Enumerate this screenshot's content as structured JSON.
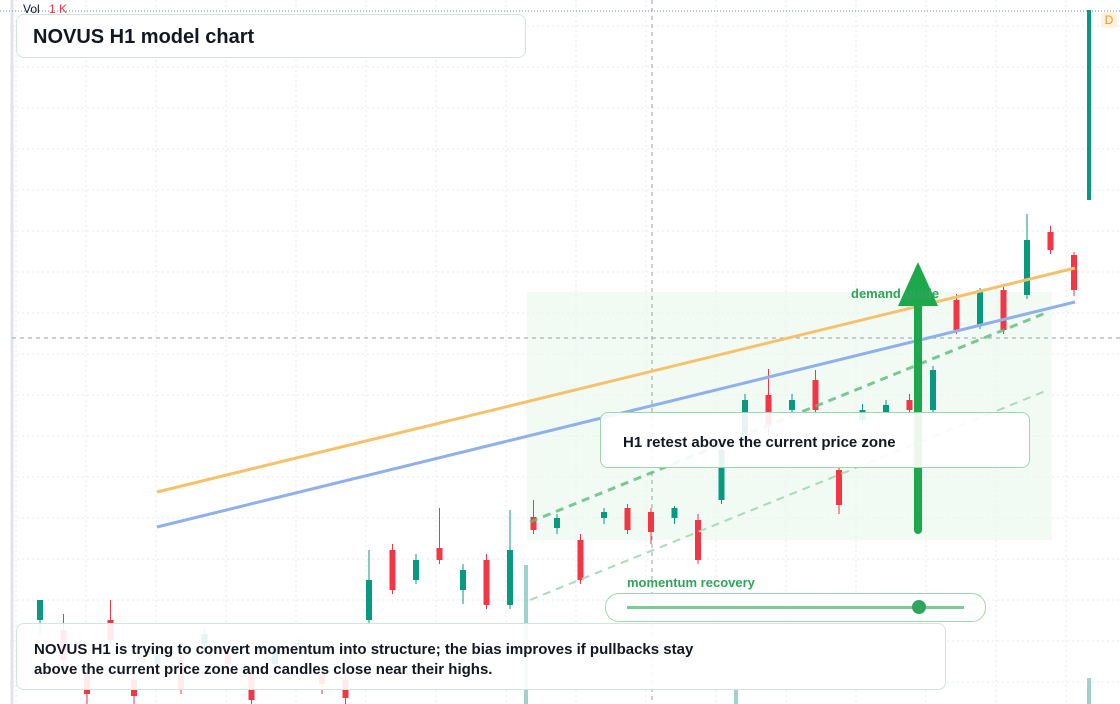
{
  "chart_data": {
    "type": "candlestick",
    "title": "NOVUS H1 model chart",
    "volume_label": "Vol",
    "volume_value": "1 K",
    "interval_badge": "D",
    "annotations": {
      "zone": "demand guide",
      "retest": "H1 retest above the current price zone",
      "momentum": "momentum recovery"
    },
    "note": [
      "NOVUS H1 is trying to convert momentum into structure; the bias improves if pullbacks stay",
      "above the current price zone and candles close near their highs."
    ],
    "up_color": "#089981",
    "down_color": "#f23645",
    "ylim": [
      0,
      704
    ],
    "open": [
      84,
      74,
      30,
      84,
      24,
      40,
      44,
      60,
      50,
      30,
      40,
      60,
      30,
      24,
      84,
      154,
      124,
      156,
      114,
      144,
      99,
      187,
      176,
      164,
      186,
      196,
      192,
      186,
      184,
      204,
      264,
      309,
      294,
      324,
      234,
      284,
      292,
      304,
      294,
      404,
      379,
      414,
      409,
      472,
      449
    ],
    "high": [
      104,
      90,
      40,
      104,
      30,
      60,
      50,
      75,
      55,
      35,
      60,
      65,
      40,
      30,
      154,
      160,
      150,
      196,
      140,
      150,
      194,
      204,
      190,
      170,
      196,
      200,
      196,
      198,
      190,
      260,
      310,
      335,
      310,
      334,
      240,
      300,
      304,
      310,
      338,
      410,
      416,
      420,
      490,
      478,
      452
    ],
    "low": [
      70,
      30,
      0,
      60,
      0,
      30,
      10,
      55,
      30,
      0,
      35,
      55,
      10,
      0,
      80,
      110,
      120,
      140,
      100,
      95,
      95,
      170,
      170,
      120,
      180,
      170,
      160,
      180,
      140,
      200,
      260,
      270,
      290,
      290,
      190,
      280,
      288,
      290,
      290,
      370,
      375,
      370,
      405,
      450,
      408
    ],
    "close": [
      104,
      44,
      10,
      64,
      8,
      50,
      14,
      70,
      40,
      4,
      55,
      61,
      20,
      6,
      124,
      114,
      144,
      144,
      134,
      99,
      154,
      174,
      186,
      124,
      192,
      174,
      172,
      196,
      144,
      254,
      304,
      279,
      304,
      294,
      199,
      294,
      299,
      294,
      334,
      374,
      414,
      374,
      464,
      454,
      414
    ]
  }
}
